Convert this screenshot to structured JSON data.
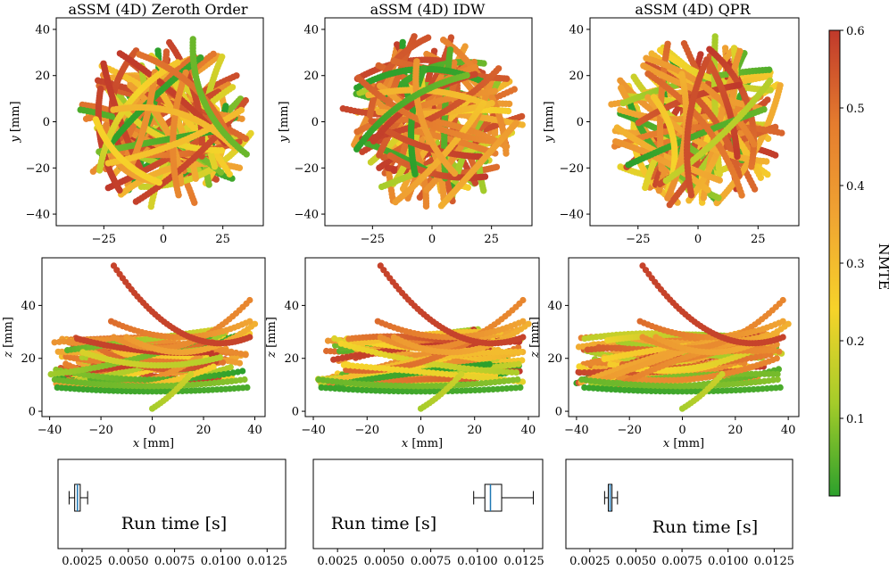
{
  "chart_data": {
    "type": "scatter",
    "colormap": {
      "colors": [
        "#2ca02c",
        "#a5cc2a",
        "#f6d32a",
        "#f0a432",
        "#e57c2e",
        "#c0392b"
      ],
      "label": "NMTE",
      "range": [
        0.0,
        0.6
      ],
      "ticks": [
        "0.1",
        "0.2",
        "0.3",
        "0.4",
        "0.5",
        "0.6"
      ],
      "tick_values": [
        0.1,
        0.2,
        0.3,
        0.4,
        0.5,
        0.6
      ]
    },
    "xy_axes": {
      "xlim": [
        -45,
        42
      ],
      "ylim": [
        -45,
        45
      ],
      "xticks": [
        -25,
        0,
        25
      ],
      "xtick_labels": [
        "−25",
        "0",
        "25"
      ],
      "yticks": [
        -40,
        -20,
        0,
        20,
        40
      ],
      "ytick_labels": [
        "−40",
        "−20",
        "0",
        "20",
        "40"
      ],
      "ylabel_var": "y",
      "ylabel_unit": "[mm]"
    },
    "xz_axes": {
      "xlim": [
        -43,
        44
      ],
      "ylim": [
        -2,
        58
      ],
      "xticks": [
        -40,
        -20,
        0,
        20,
        40
      ],
      "xtick_labels": [
        "−40",
        "−20",
        "0",
        "20",
        "40"
      ],
      "yticks": [
        0,
        20,
        40
      ],
      "ytick_labels": [
        "0",
        "20",
        "40"
      ],
      "xlabel_var": "x",
      "xlabel_unit": "[mm]",
      "ylabel_var": "z",
      "ylabel_unit": "[mm]"
    },
    "box_axes": {
      "xlim": [
        0.0012,
        0.0135
      ],
      "xticks": [
        0.0025,
        0.005,
        0.0075,
        0.01,
        0.0125
      ],
      "xtick_labels": [
        "0.0025",
        "0.0050",
        "0.0075",
        "0.0100",
        "0.0125"
      ],
      "label": "Run time [s]"
    },
    "panels": [
      {
        "title": "aSSM (4D) Zeroth Order",
        "seed": 11,
        "runtime_box": {
          "whislo": 0.0018,
          "q1": 0.0021,
          "median": 0.00225,
          "q3": 0.0024,
          "whishi": 0.0028
        }
      },
      {
        "title": "aSSM (4D) IDW",
        "seed": 23,
        "runtime_box": {
          "whislo": 0.0098,
          "q1": 0.0104,
          "median": 0.0107,
          "q3": 0.0113,
          "whishi": 0.013
        }
      },
      {
        "title": "aSSM (4D) QPR",
        "seed": 37,
        "runtime_box": {
          "whislo": 0.0033,
          "q1": 0.0035,
          "median": 0.0036,
          "q3": 0.0037,
          "whishi": 0.004
        }
      }
    ]
  }
}
